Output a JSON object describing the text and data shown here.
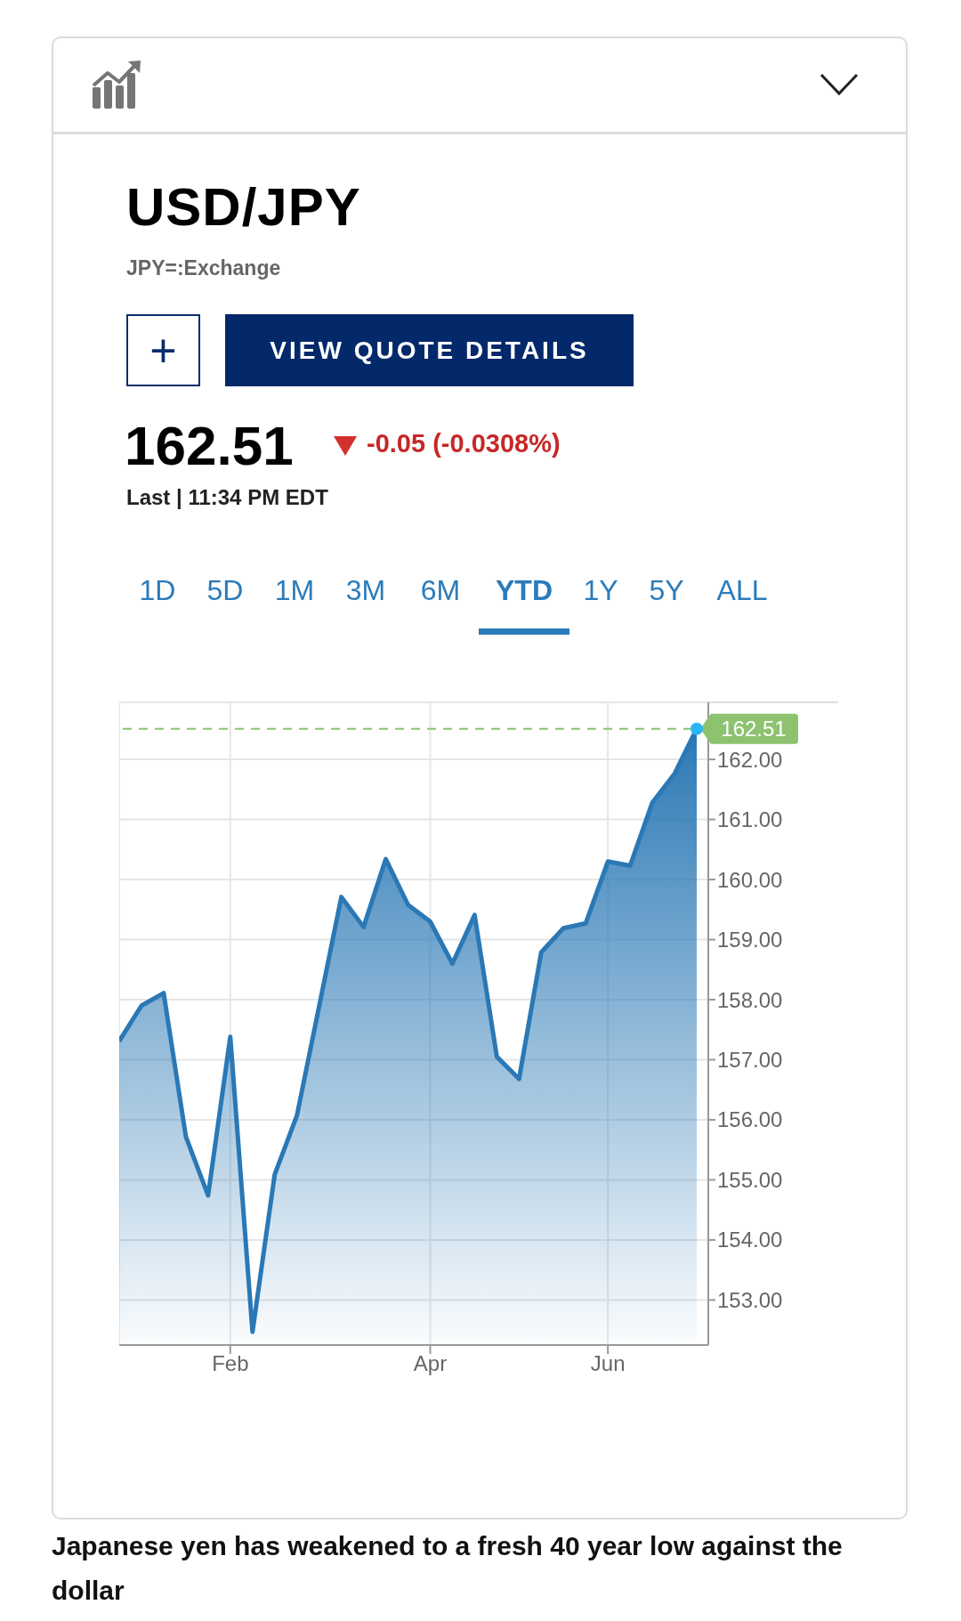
{
  "chart_data": {
    "type": "area",
    "title": "USD/JPY",
    "subtitle": "JPY=:Exchange",
    "categories": [
      null,
      null,
      null,
      null,
      null,
      "Feb",
      null,
      null,
      null,
      null,
      null,
      null,
      null,
      null,
      "Apr",
      null,
      null,
      null,
      null,
      null,
      null,
      null,
      "Jun",
      null,
      null,
      null,
      null
    ],
    "series": [
      {
        "color": "#2a78b5",
        "values": [
          157.31,
          157.9,
          158.11,
          155.72,
          154.74,
          157.38,
          152.47,
          155.09,
          156.07,
          157.89,
          159.71,
          159.21,
          160.34,
          159.58,
          159.3,
          158.6,
          159.41,
          157.05,
          156.68,
          158.79,
          159.19,
          159.27,
          160.3,
          160.23,
          161.28,
          161.76,
          162.51
        ],
        "value_labels": [
          null,
          null,
          null,
          null,
          null,
          null,
          null,
          null,
          null,
          null,
          null,
          null,
          null,
          null,
          null,
          null,
          null,
          null,
          null,
          null,
          null,
          null,
          null,
          null,
          null,
          null,
          "162.51"
        ]
      }
    ],
    "ylim": [
      152.25,
      162.95
    ],
    "yticks": [
      {
        "value": 153,
        "label": "153.00"
      },
      {
        "value": 154,
        "label": "154.00"
      },
      {
        "value": 155,
        "label": "155.00"
      },
      {
        "value": 156,
        "label": "156.00"
      },
      {
        "value": 157,
        "label": "157.00"
      },
      {
        "value": 158,
        "label": "158.00"
      },
      {
        "value": 159,
        "label": "159.00"
      },
      {
        "value": 160,
        "label": "160.00"
      },
      {
        "value": 161,
        "label": "161.00"
      },
      {
        "value": 162,
        "label": "162.00"
      }
    ],
    "ref_lines": [
      {
        "axis": "y",
        "value": 162.51,
        "color": "#8dc26f",
        "line_style": "dashed"
      }
    ],
    "grid": true,
    "annotations": [
      "162.51",
      "-0.05 (-0.0308%)",
      "Last | 11:34 PM EDT",
      "+",
      "VIEW QUOTE DETAILS",
      "1D",
      "5D",
      "1M",
      "3M",
      "6M",
      "YTD",
      "1Y",
      "5Y",
      "ALL",
      "Japanese yen has weakened to a fresh 40 year low against the dollar"
    ]
  }
}
